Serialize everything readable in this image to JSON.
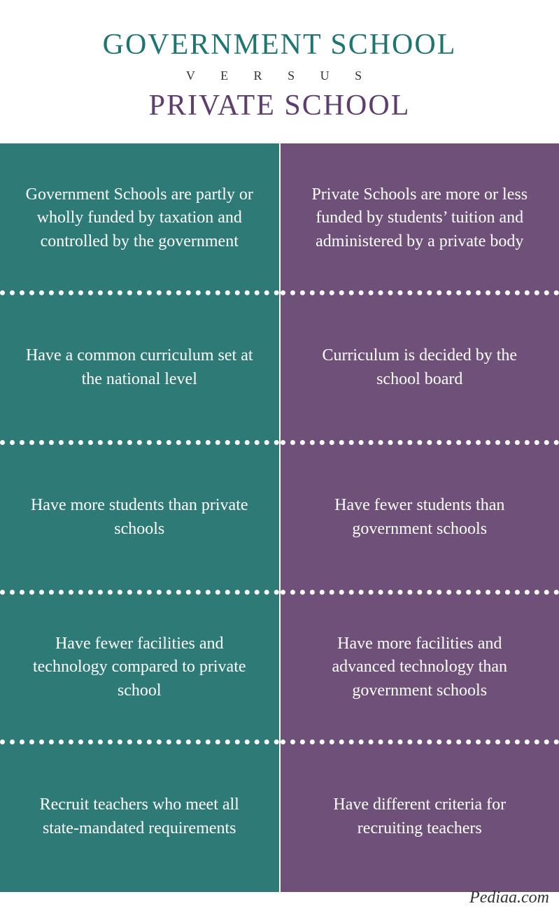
{
  "header": {
    "title_top": "GOVERNMENT SCHOOL",
    "versus": "V E R S U S",
    "title_bottom": "PRIVATE SCHOOL",
    "title_top_color": "#1e7572",
    "title_bottom_color": "#5f3d6e"
  },
  "columns": {
    "left": {
      "bg_color": "#2d7a76",
      "cells": [
        "Government Schools are partly or wholly funded by taxation and controlled by the government",
        "Have a common curriculum set at the national level",
        "Have more students than private schools",
        "Have fewer facilities and technology compared to private school",
        "Recruit teachers who meet all state-mandated requirements"
      ]
    },
    "right": {
      "bg_color": "#6e5078",
      "cells": [
        "Private Schools are more or less funded by students’ tuition and administered by a private body",
        "Curriculum is decided by the school board",
        "Have fewer students than government schools",
        "Have more facilities and advanced technology than government schools",
        "Have different criteria for recruiting teachers"
      ]
    }
  },
  "footer": {
    "credit": "Pediaa.com"
  },
  "style": {
    "text_color": "#ffffff",
    "cell_fontsize": 24,
    "title_fontsize": 42,
    "versus_fontsize": 18,
    "divider_style": "dotted"
  }
}
